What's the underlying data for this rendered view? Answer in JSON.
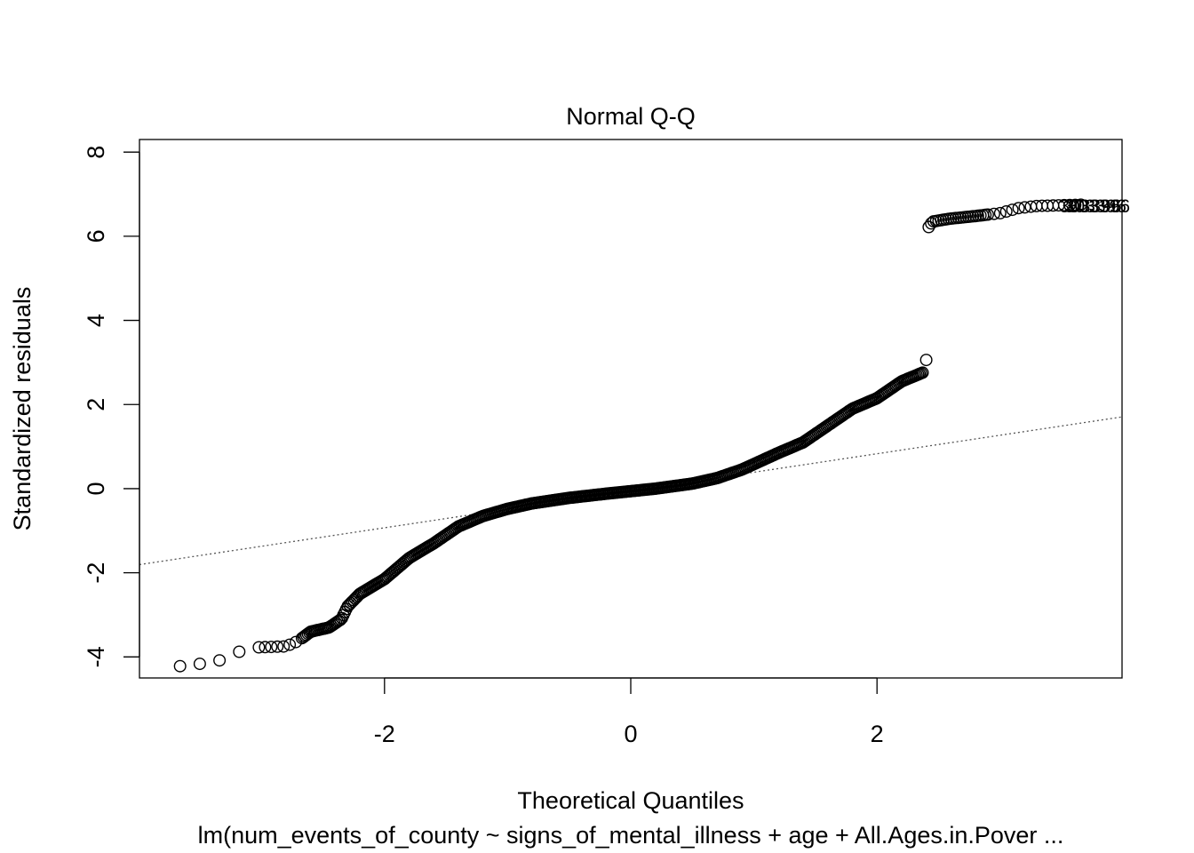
{
  "chart_data": {
    "type": "scatter",
    "title": "Normal Q-Q",
    "xlabel": "Theoretical Quantiles",
    "ylabel": "Standardized residuals",
    "subtitle": "lm(num_events_of_county ~ signs_of_mental_illness + age + All.Ages.in.Pover ...",
    "xlim": [
      -3.99,
      3.99
    ],
    "ylim": [
      -4.5,
      8.3
    ],
    "x_ticks": [
      {
        "value": -2,
        "label": "-2"
      },
      {
        "value": 0,
        "label": "0"
      },
      {
        "value": 2,
        "label": "2"
      }
    ],
    "y_ticks": [
      {
        "value": -4,
        "label": "-4"
      },
      {
        "value": -2,
        "label": "-2"
      },
      {
        "value": 0,
        "label": "0"
      },
      {
        "value": 2,
        "label": "2"
      },
      {
        "value": 4,
        "label": "4"
      },
      {
        "value": 6,
        "label": "6"
      },
      {
        "value": 8,
        "label": "8"
      }
    ],
    "grid": false,
    "legend": "none",
    "reference_line": {
      "slope": 0.44,
      "intercept": -0.05,
      "style": "dotted",
      "color": "#555555"
    },
    "curve_knots": [
      [
        -3.66,
        -4.22
      ],
      [
        -3.37,
        -4.12
      ],
      [
        -3.2,
        -3.9
      ],
      [
        -3.1,
        -3.78
      ],
      [
        -2.8,
        -3.75
      ],
      [
        -2.7,
        -3.62
      ],
      [
        -2.6,
        -3.4
      ],
      [
        -2.45,
        -3.3
      ],
      [
        -2.35,
        -3.1
      ],
      [
        -2.3,
        -2.8
      ],
      [
        -2.2,
        -2.5
      ],
      [
        -2.0,
        -2.15
      ],
      [
        -1.8,
        -1.65
      ],
      [
        -1.6,
        -1.3
      ],
      [
        -1.4,
        -0.9
      ],
      [
        -1.2,
        -0.65
      ],
      [
        -1.0,
        -0.48
      ],
      [
        -0.8,
        -0.35
      ],
      [
        -0.5,
        -0.22
      ],
      [
        -0.2,
        -0.12
      ],
      [
        0.0,
        -0.06
      ],
      [
        0.2,
        0.0
      ],
      [
        0.5,
        0.12
      ],
      [
        0.7,
        0.25
      ],
      [
        0.9,
        0.45
      ],
      [
        1.2,
        0.85
      ],
      [
        1.4,
        1.1
      ],
      [
        1.6,
        1.5
      ],
      [
        1.8,
        1.9
      ],
      [
        2.0,
        2.15
      ],
      [
        2.2,
        2.55
      ],
      [
        2.38,
        2.77
      ]
    ],
    "tail_knots": [
      [
        2.42,
        6.22
      ],
      [
        2.45,
        6.35
      ],
      [
        2.6,
        6.42
      ],
      [
        2.8,
        6.48
      ],
      [
        3.0,
        6.55
      ],
      [
        3.15,
        6.67
      ],
      [
        3.3,
        6.72
      ],
      [
        3.66,
        6.75
      ]
    ],
    "extra_points": [
      {
        "x": 2.4,
        "y": 3.06
      }
    ],
    "outlier_labels": [
      {
        "x": 3.48,
        "y": 6.72,
        "text": "303396"
      },
      {
        "x": 3.52,
        "y": 6.72,
        "text": "303396"
      },
      {
        "x": 3.55,
        "y": 6.72,
        "text": "303396"
      }
    ],
    "point_style": "open-circle"
  }
}
